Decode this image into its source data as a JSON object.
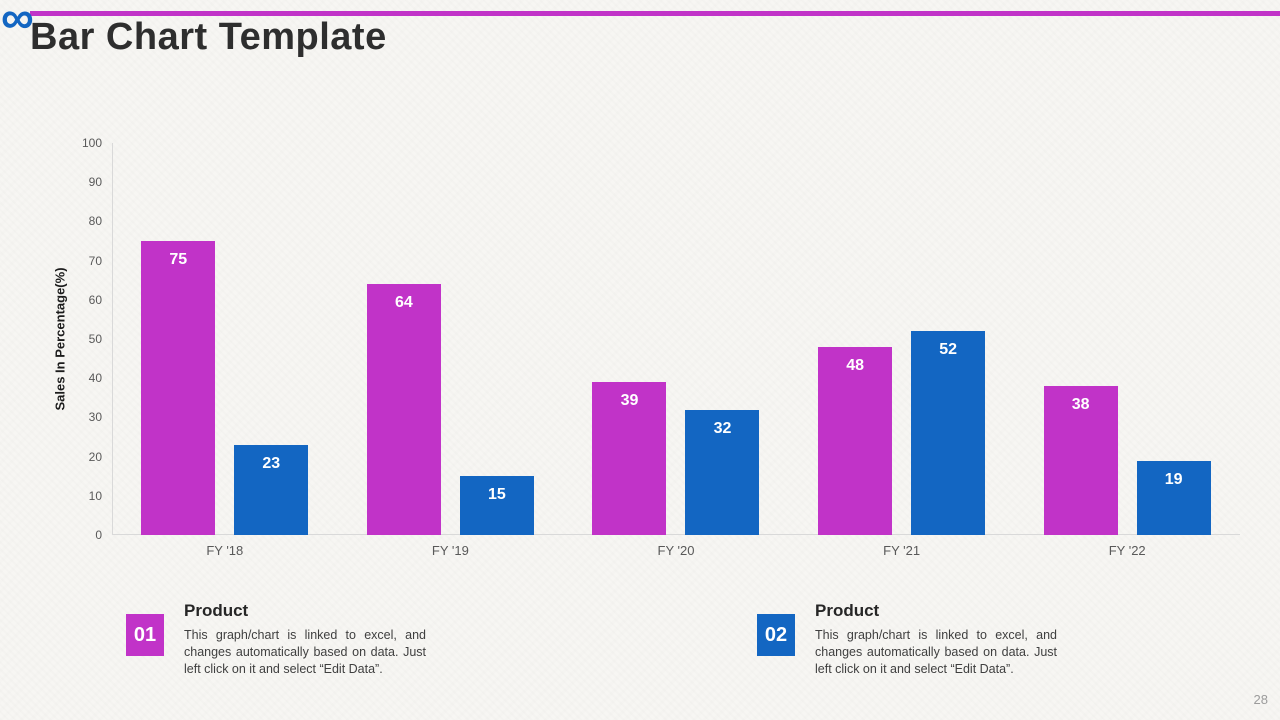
{
  "theme": {
    "magenta": "#C133C8",
    "blue": "#1366C2",
    "background": "#F7F6F3",
    "axis_line": "#D9D9D9",
    "title_color": "#2E2E2E",
    "tick_color": "#595959"
  },
  "slide": {
    "title": "Bar Chart Template",
    "logo_glyph": "∞",
    "page_number": "28"
  },
  "chart_data": {
    "type": "bar",
    "title": "",
    "categories": [
      "FY '18",
      "FY '19",
      "FY '20",
      "FY '21",
      "FY '22"
    ],
    "series": [
      {
        "name": "Product 01",
        "color": "#C133C8",
        "values": [
          75,
          64,
          39,
          48,
          38
        ]
      },
      {
        "name": "Product 02",
        "color": "#1366C2",
        "values": [
          23,
          15,
          32,
          52,
          19
        ]
      }
    ],
    "ylabel": "Sales In Percentage(%)",
    "xlabel": "",
    "ylim": [
      0,
      100
    ],
    "ytick_step": 10,
    "grid": false,
    "legend_position": "below-as-numbered-notes",
    "value_labels": "inside-top-white-bold"
  },
  "legend": {
    "items": [
      {
        "number": "01",
        "color": "#C133C8",
        "heading": "Product",
        "description": "This graph/chart is linked to excel, and changes automatically based on data. Just left click on it and select “Edit Data”."
      },
      {
        "number": "02",
        "color": "#1366C2",
        "heading": "Product",
        "description": "This graph/chart is linked to excel, and changes automatically based on data. Just left click on it and select “Edit Data”."
      }
    ]
  }
}
